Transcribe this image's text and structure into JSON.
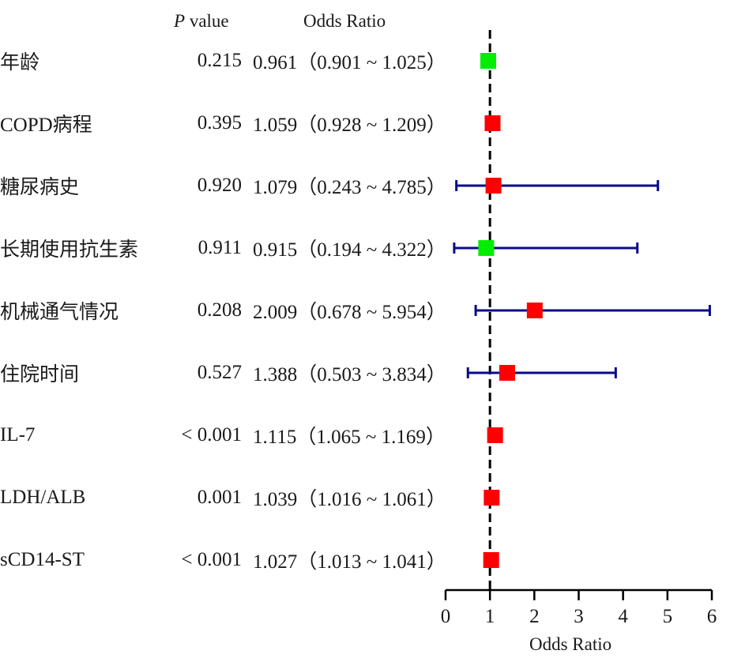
{
  "header": {
    "p_italic": "P",
    "p_rest": " value",
    "odds_ratio": "Odds Ratio"
  },
  "chart_data": {
    "type": "forest",
    "xlabel": "Odds Ratio",
    "xlim": [
      0,
      6
    ],
    "xticks": [
      "0",
      "1",
      "2",
      "3",
      "4",
      "5",
      "6"
    ],
    "reference_line": 1,
    "colors": {
      "risk": "#ff0000",
      "protective": "#00ee00",
      "ci": "#0a0a8a",
      "reference": "#000000"
    },
    "rows": [
      {
        "label": "年龄",
        "p": "0.215",
        "or_text": "0.961（0.901 ~ 1.025）",
        "or": 0.961,
        "lo": 0.901,
        "hi": 1.025,
        "marker": "protective"
      },
      {
        "label": "COPD病程",
        "p": "0.395",
        "or_text": "1.059（0.928 ~ 1.209）",
        "or": 1.059,
        "lo": 0.928,
        "hi": 1.209,
        "marker": "risk"
      },
      {
        "label": "糖尿病史",
        "p": "0.920",
        "or_text": "1.079（0.243 ~ 4.785）",
        "or": 1.079,
        "lo": 0.243,
        "hi": 4.785,
        "marker": "risk"
      },
      {
        "label": "长期使用抗生素",
        "p": "0.911",
        "or_text": "0.915（0.194 ~ 4.322）",
        "or": 0.915,
        "lo": 0.194,
        "hi": 4.322,
        "marker": "protective"
      },
      {
        "label": "机械通气情况",
        "p": "0.208",
        "or_text": "2.009（0.678 ~ 5.954）",
        "or": 2.009,
        "lo": 0.678,
        "hi": 5.954,
        "marker": "risk"
      },
      {
        "label": "住院时间",
        "p": "0.527",
        "or_text": "1.388（0.503 ~ 3.834）",
        "or": 1.388,
        "lo": 0.503,
        "hi": 3.834,
        "marker": "risk"
      },
      {
        "label": "IL-7",
        "p": "< 0.001",
        "or_text": "1.115（1.065 ~ 1.169）",
        "or": 1.115,
        "lo": 1.065,
        "hi": 1.169,
        "marker": "risk"
      },
      {
        "label": "LDH/ALB",
        "p": "0.001",
        "or_text": "1.039（1.016 ~ 1.061）",
        "or": 1.039,
        "lo": 1.016,
        "hi": 1.061,
        "marker": "risk"
      },
      {
        "label": "sCD14-ST",
        "p": "< 0.001",
        "or_text": "1.027（1.013 ~ 1.041）",
        "or": 1.027,
        "lo": 1.013,
        "hi": 1.041,
        "marker": "risk"
      }
    ]
  }
}
